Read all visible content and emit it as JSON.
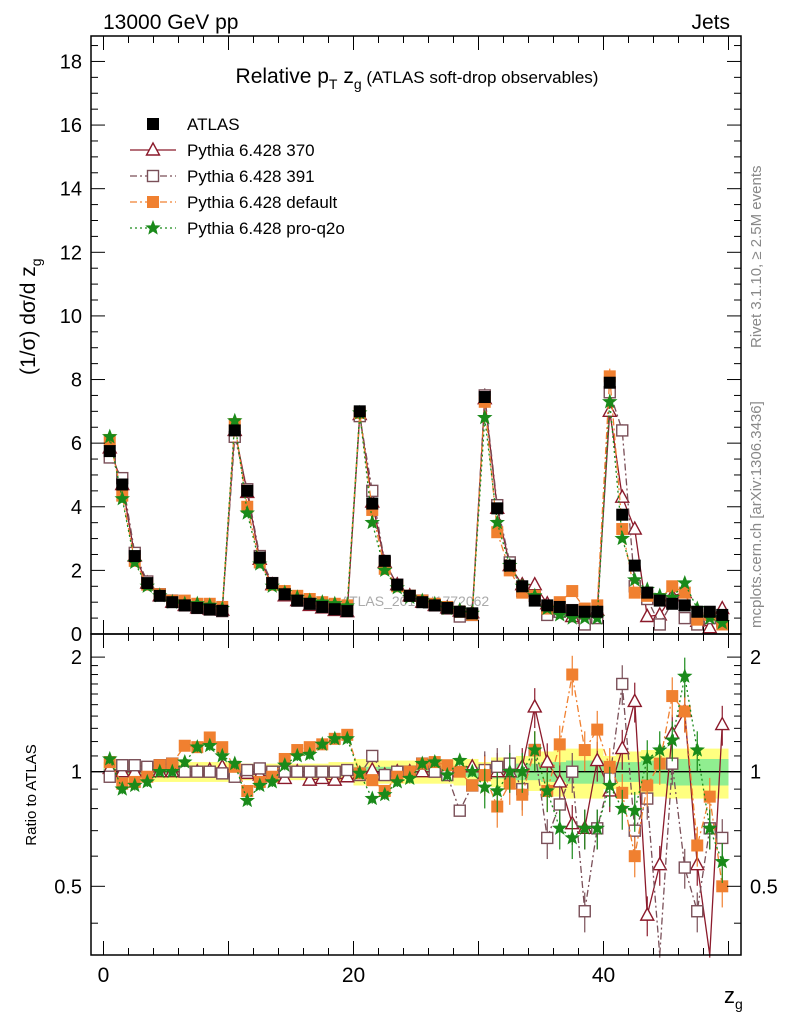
{
  "header": {
    "left": "13000 GeV pp",
    "right": "Jets"
  },
  "side_labels": {
    "rivet": "Rivet 3.1.10, ≥ 2.5M events",
    "mcplots": "mcplots.cern.ch [arXiv:1306.3436]"
  },
  "watermark": "ATLAS_2019_I1772062",
  "chart_data": [
    {
      "type": "line",
      "title": "Relative pT zg (ATLAS soft-drop observables)",
      "title_parts": {
        "main": "Relative p",
        "sub": "T",
        "mid": " z",
        "sub2": "g",
        "tail": " (ATLAS soft-drop observables)"
      },
      "xlabel": "z_g",
      "ylabel": "(1/σ) dσ/d z_g",
      "xlim": [
        -1,
        51
      ],
      "ylim": [
        0,
        18.8
      ],
      "xticks": [
        "0",
        "20",
        "40"
      ],
      "xtick_values": [
        0,
        20,
        40
      ],
      "yticks": [
        "0",
        "2",
        "4",
        "6",
        "8",
        "10",
        "12",
        "14",
        "16",
        "18"
      ],
      "ytick_values": [
        0,
        2,
        4,
        6,
        8,
        10,
        12,
        14,
        16,
        18
      ],
      "legend_position": "top-left",
      "x": [
        0.5,
        1.5,
        2.5,
        3.5,
        4.5,
        5.5,
        6.5,
        7.5,
        8.5,
        9.5,
        10.5,
        11.5,
        12.5,
        13.5,
        14.5,
        15.5,
        16.5,
        17.5,
        18.5,
        19.5,
        20.5,
        21.5,
        22.5,
        23.5,
        24.5,
        25.5,
        26.5,
        27.5,
        28.5,
        29.5,
        30.5,
        31.5,
        32.5,
        33.5,
        34.5,
        35.5,
        36.5,
        37.5,
        38.5,
        39.5,
        40.5,
        41.5,
        42.5,
        43.5,
        44.5,
        45.5,
        46.5,
        47.5,
        48.5,
        49.5
      ],
      "series": [
        {
          "name": "ATLAS",
          "color": "#000000",
          "marker": "filled-square",
          "line": "none",
          "values": [
            5.75,
            4.7,
            2.45,
            1.6,
            1.2,
            1.0,
            0.9,
            0.82,
            0.77,
            0.73,
            6.4,
            4.5,
            2.4,
            1.6,
            1.25,
            1.05,
            0.95,
            0.85,
            0.78,
            0.72,
            7.0,
            4.1,
            2.3,
            1.55,
            1.2,
            1.0,
            0.9,
            0.82,
            0.7,
            0.65,
            7.45,
            3.95,
            2.15,
            1.5,
            1.05,
            0.9,
            0.85,
            0.75,
            0.7,
            0.7,
            7.9,
            3.75,
            2.15,
            1.3,
            1.05,
            0.95,
            0.9,
            0.7,
            0.7,
            0.6
          ]
        },
        {
          "name": "Pythia 6.428 370",
          "color": "#8b1a2b",
          "marker": "open-triangle",
          "line": "solid",
          "values": [
            5.85,
            4.7,
            2.45,
            1.6,
            1.2,
            1.0,
            0.9,
            0.82,
            0.78,
            0.75,
            6.4,
            4.45,
            2.35,
            1.55,
            1.2,
            1.05,
            0.9,
            0.82,
            0.74,
            0.7,
            6.9,
            4.15,
            2.25,
            1.55,
            1.2,
            1.0,
            0.9,
            0.82,
            0.72,
            0.67,
            7.4,
            3.95,
            2.15,
            1.55,
            1.55,
            0.95,
            0.8,
            0.55,
            0.5,
            0.75,
            7.0,
            4.3,
            3.3,
            0.55,
            0.6,
            1.2,
            1.3,
            0.4,
            0.2,
            0.8
          ]
        },
        {
          "name": "Pythia 6.428 391",
          "color": "#7a4f58",
          "marker": "open-square",
          "line": "dashdot",
          "values": [
            5.55,
            4.9,
            2.55,
            1.65,
            1.25,
            1.05,
            0.9,
            0.82,
            0.77,
            0.72,
            6.2,
            4.55,
            2.45,
            1.6,
            1.25,
            1.05,
            0.95,
            0.85,
            0.78,
            0.73,
            6.85,
            4.5,
            2.25,
            1.55,
            1.2,
            1.05,
            0.9,
            0.8,
            0.55,
            0.6,
            7.5,
            4.05,
            2.25,
            1.35,
            1.2,
            0.6,
            0.7,
            0.75,
            0.3,
            0.5,
            7.6,
            6.4,
            1.5,
            1.1,
            0.3,
            1.0,
            0.5,
            0.3,
            0.5,
            0.4
          ]
        },
        {
          "name": "Pythia 6.428 default",
          "color": "#f08030",
          "marker": "filled-square",
          "line": "dashdot",
          "values": [
            6.1,
            4.35,
            2.3,
            1.55,
            1.25,
            1.05,
            1.05,
            0.95,
            0.95,
            0.85,
            6.6,
            4.0,
            2.25,
            1.55,
            1.35,
            1.2,
            1.1,
            1.0,
            0.95,
            0.9,
            6.95,
            3.9,
            2.05,
            1.5,
            1.2,
            1.05,
            0.95,
            0.85,
            0.7,
            0.6,
            7.3,
            3.2,
            2.0,
            1.3,
            1.2,
            0.8,
            1.0,
            1.35,
            0.8,
            0.9,
            8.1,
            3.3,
            1.3,
            1.2,
            1.1,
            1.5,
            1.3,
            0.45,
            0.6,
            0.3
          ]
        },
        {
          "name": "Pythia 6.428 pro-q2o",
          "color": "#1a8a1a",
          "marker": "star",
          "line": "dotted",
          "values": [
            6.2,
            4.25,
            2.25,
            1.5,
            1.2,
            1.0,
            0.95,
            0.95,
            0.9,
            0.8,
            6.7,
            3.8,
            2.2,
            1.5,
            1.3,
            1.15,
            1.05,
            1.0,
            0.95,
            0.88,
            6.95,
            3.5,
            2.0,
            1.45,
            1.15,
            1.05,
            0.95,
            0.8,
            0.75,
            0.65,
            6.8,
            3.5,
            2.15,
            1.5,
            1.2,
            0.8,
            0.6,
            0.5,
            0.5,
            0.5,
            7.3,
            3.0,
            1.7,
            1.4,
            1.2,
            1.15,
            1.6,
            0.8,
            0.5,
            0.35
          ]
        }
      ]
    },
    {
      "type": "line",
      "title": "",
      "xlabel": "z_g",
      "ylabel": "Ratio to ATLAS",
      "xlim": [
        -1,
        51
      ],
      "ylim": [
        0.33,
        2.3
      ],
      "yticks": [
        "0.5",
        "1",
        "2"
      ],
      "ytick_values": [
        0.5,
        1,
        2
      ],
      "reference_line": 1,
      "bands": [
        {
          "color": "#ffff80",
          "values": [
            0.06,
            0.06,
            0.06,
            0.06,
            0.06,
            0.06,
            0.06,
            0.06,
            0.06,
            0.06,
            0.05,
            0.05,
            0.05,
            0.05,
            0.05,
            0.05,
            0.05,
            0.05,
            0.06,
            0.06,
            0.08,
            0.07,
            0.07,
            0.07,
            0.07,
            0.07,
            0.07,
            0.07,
            0.08,
            0.08,
            0.06,
            0.09,
            0.09,
            0.1,
            0.11,
            0.13,
            0.14,
            0.15,
            0.15,
            0.15,
            0.1,
            0.13,
            0.13,
            0.14,
            0.14,
            0.15,
            0.15,
            0.15,
            0.15,
            0.15
          ]
        },
        {
          "color": "#90ee90",
          "values": [
            0.02,
            0.02,
            0.02,
            0.02,
            0.02,
            0.02,
            0.02,
            0.02,
            0.02,
            0.02,
            0.02,
            0.02,
            0.02,
            0.02,
            0.02,
            0.02,
            0.02,
            0.02,
            0.02,
            0.02,
            0.03,
            0.03,
            0.03,
            0.03,
            0.03,
            0.03,
            0.03,
            0.03,
            0.03,
            0.03,
            0.03,
            0.04,
            0.04,
            0.05,
            0.05,
            0.06,
            0.06,
            0.07,
            0.07,
            0.07,
            0.05,
            0.06,
            0.06,
            0.07,
            0.07,
            0.08,
            0.08,
            0.08,
            0.08,
            0.08
          ]
        }
      ],
      "series": [
        {
          "name": "Pythia 6.428 370",
          "values": [
            1.02,
            1.0,
            1.0,
            1.0,
            1.0,
            1.0,
            1.0,
            1.0,
            1.01,
            1.03,
            1.0,
            0.99,
            0.98,
            0.97,
            0.96,
            1.0,
            0.95,
            0.96,
            0.95,
            0.97,
            0.99,
            1.01,
            0.98,
            1.0,
            1.0,
            1.0,
            1.0,
            1.0,
            1.03,
            1.03,
            0.99,
            1.0,
            1.0,
            1.03,
            1.48,
            1.06,
            0.94,
            0.73,
            0.71,
            1.07,
            0.89,
            1.15,
            1.53,
            0.42,
            0.57,
            1.26,
            1.44,
            0.57,
            0.29,
            1.33
          ]
        },
        {
          "name": "Pythia 6.428 391",
          "values": [
            0.97,
            1.04,
            1.04,
            1.03,
            1.04,
            1.05,
            1.0,
            1.0,
            1.0,
            0.99,
            0.97,
            1.01,
            1.02,
            1.0,
            1.0,
            1.0,
            1.0,
            1.0,
            1.0,
            1.01,
            0.98,
            1.1,
            0.98,
            1.0,
            1.0,
            1.05,
            1.0,
            0.98,
            0.79,
            0.92,
            1.01,
            1.03,
            1.05,
            0.9,
            1.14,
            0.67,
            0.82,
            1.0,
            0.43,
            0.71,
            0.96,
            1.7,
            0.7,
            0.85,
            0.29,
            1.05,
            0.56,
            0.43,
            0.71,
            0.67
          ]
        },
        {
          "name": "Pythia 6.428 default",
          "values": [
            1.06,
            0.93,
            0.94,
            0.97,
            1.04,
            1.05,
            1.17,
            1.16,
            1.23,
            1.16,
            1.03,
            0.89,
            0.94,
            0.97,
            1.08,
            1.14,
            1.16,
            1.18,
            1.22,
            1.25,
            0.99,
            0.95,
            0.89,
            0.97,
            1.0,
            1.05,
            1.06,
            1.04,
            1.0,
            0.92,
            0.98,
            0.81,
            0.93,
            0.87,
            1.14,
            0.89,
            1.18,
            1.8,
            1.14,
            1.29,
            1.03,
            0.88,
            0.6,
            0.92,
            1.05,
            1.58,
            1.44,
            0.64,
            0.86,
            0.5
          ]
        },
        {
          "name": "Pythia 6.428 pro-q2o",
          "values": [
            1.08,
            0.9,
            0.92,
            0.94,
            1.0,
            1.0,
            1.06,
            1.16,
            1.17,
            1.1,
            1.05,
            0.84,
            0.92,
            0.94,
            1.04,
            1.1,
            1.11,
            1.18,
            1.22,
            1.22,
            0.99,
            0.85,
            0.87,
            0.94,
            0.96,
            1.05,
            1.06,
            0.98,
            1.07,
            1.0,
            0.91,
            0.89,
            1.0,
            1.0,
            1.14,
            0.89,
            0.71,
            0.67,
            0.71,
            0.71,
            0.92,
            0.8,
            0.79,
            1.08,
            1.14,
            1.21,
            1.78,
            1.14,
            0.71,
            0.58
          ]
        }
      ]
    }
  ]
}
